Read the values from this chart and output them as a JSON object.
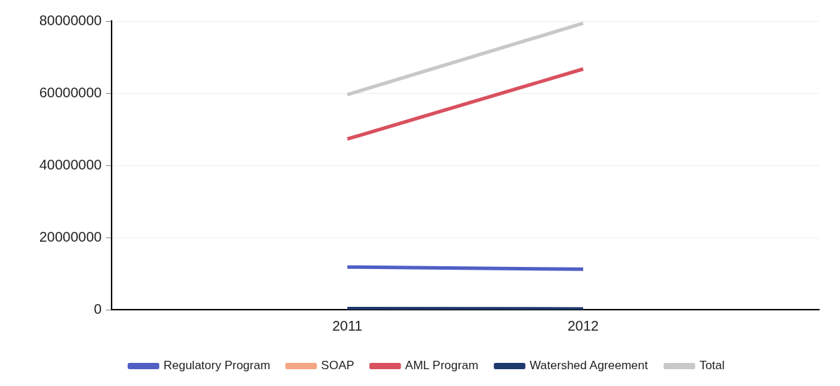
{
  "chart_data": {
    "type": "line",
    "categories": [
      null,
      "2011",
      "2012",
      null
    ],
    "ylim": [
      0,
      80000000
    ],
    "yticks": [
      0,
      20000000,
      40000000,
      60000000,
      80000000
    ],
    "grid": "y",
    "legend": "bottom",
    "marker": "none",
    "line_style": "solid",
    "series": [
      {
        "name": "Regulatory Program",
        "color": "#4f5fc4",
        "values": [
          null,
          11800000,
          11200000,
          null
        ]
      },
      {
        "name": "SOAP",
        "color": "#f4a582",
        "values": [
          null,
          null,
          null,
          null
        ]
      },
      {
        "name": "AML Program",
        "color": "#d9505e",
        "values": [
          null,
          47300000,
          66700000,
          null
        ]
      },
      {
        "name": "Watershed Agreement",
        "color": "#1f3a6e",
        "values": [
          null,
          300000,
          200000,
          null
        ]
      },
      {
        "name": "Total",
        "color": "#c8c8c8",
        "values": [
          null,
          59600000,
          79400000,
          null
        ]
      }
    ]
  }
}
